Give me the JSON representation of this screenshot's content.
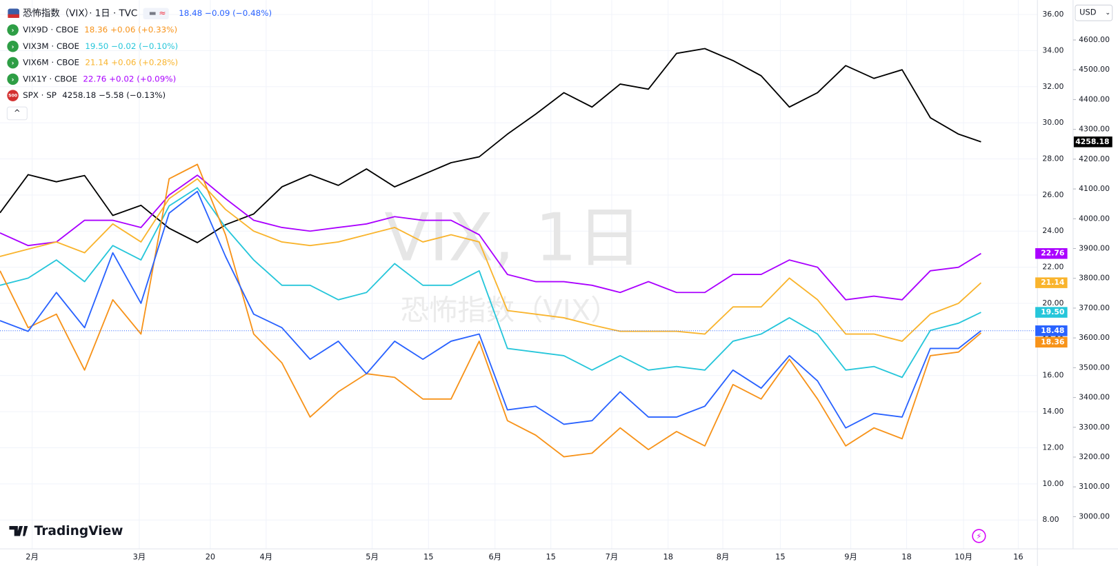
{
  "chart_data": {
    "type": "line",
    "watermark": [
      "VIX, 1日",
      "恐怖指数（VIX）"
    ],
    "brand": "TradingView",
    "currency": "USD",
    "grid": true,
    "x": [
      0,
      5,
      10,
      15,
      20,
      25,
      30,
      35,
      40,
      45,
      50,
      55,
      60,
      65,
      70,
      75,
      80,
      85,
      90,
      95,
      100,
      105,
      110,
      115,
      120,
      125,
      130,
      135,
      140,
      145,
      150,
      155,
      160,
      165,
      170,
      174
    ],
    "xlim": [
      0,
      184
    ],
    "xticks": [
      {
        "value": 5.7,
        "label": "2月"
      },
      {
        "value": 24.7,
        "label": "3月"
      },
      {
        "value": 37.3,
        "label": "20"
      },
      {
        "value": 47.2,
        "label": "4月"
      },
      {
        "value": 66,
        "label": "5月"
      },
      {
        "value": 76,
        "label": "15"
      },
      {
        "value": 87.8,
        "label": "6月"
      },
      {
        "value": 97.7,
        "label": "15"
      },
      {
        "value": 108.5,
        "label": "7月"
      },
      {
        "value": 118.5,
        "label": "18"
      },
      {
        "value": 128.2,
        "label": "8月"
      },
      {
        "value": 138.4,
        "label": "15"
      },
      {
        "value": 150.9,
        "label": "9月"
      },
      {
        "value": 160.8,
        "label": "18"
      },
      {
        "value": 170.9,
        "label": "10月"
      },
      {
        "value": 180.6,
        "label": "16"
      }
    ],
    "ylim": [
      6.4,
      36.8
    ],
    "yticks": [
      {
        "value": 8,
        "label": "8.00"
      },
      {
        "value": 10,
        "label": "10.00"
      },
      {
        "value": 12,
        "label": "12.00"
      },
      {
        "value": 14,
        "label": "14.00"
      },
      {
        "value": 16,
        "label": "16.00"
      },
      {
        "value": 18,
        "label": "18.00"
      },
      {
        "value": 20,
        "label": "20.00"
      },
      {
        "value": 22,
        "label": "22.00"
      },
      {
        "value": 24,
        "label": "24.00"
      },
      {
        "value": 26,
        "label": "26.00"
      },
      {
        "value": 28,
        "label": "28.00"
      },
      {
        "value": 30,
        "label": "30.00"
      },
      {
        "value": 32,
        "label": "32.00"
      },
      {
        "value": 34,
        "label": "34.00"
      },
      {
        "value": 36,
        "label": "36.00"
      }
    ],
    "y2lim": [
      2892,
      4734
    ],
    "y2ticks": [
      {
        "value": 3000,
        "label": "3000.00"
      },
      {
        "value": 3100,
        "label": "3100.00"
      },
      {
        "value": 3200,
        "label": "3200.00"
      },
      {
        "value": 3300,
        "label": "3300.00"
      },
      {
        "value": 3400,
        "label": "3400.00"
      },
      {
        "value": 3500,
        "label": "3500.00"
      },
      {
        "value": 3600,
        "label": "3600.00"
      },
      {
        "value": 3700,
        "label": "3700.00"
      },
      {
        "value": 3800,
        "label": "3800.00"
      },
      {
        "value": 3900,
        "label": "3900.00"
      },
      {
        "value": 4000,
        "label": "4000.00"
      },
      {
        "value": 4100,
        "label": "4100.00"
      },
      {
        "value": 4200,
        "label": "4200.00"
      },
      {
        "value": 4300,
        "label": "4300.00"
      },
      {
        "value": 4400,
        "label": "4400.00"
      },
      {
        "value": 4500,
        "label": "4500.00"
      },
      {
        "value": 4600,
        "label": "4600.00"
      }
    ],
    "series": [
      {
        "name": "恐怖指数（VIX）· 1日 · TVC",
        "quote": "18.48 −0.09 (−0.48%)",
        "last_label": "18.48",
        "color": "#2962ff",
        "values": [
          19.04,
          18.45,
          20.6,
          18.65,
          22.8,
          20.0,
          25.0,
          26.2,
          22.6,
          19.4,
          18.65,
          16.9,
          17.9,
          16.1,
          17.9,
          16.9,
          17.9,
          18.3,
          14.1,
          14.3,
          13.3,
          13.5,
          15.1,
          13.7,
          13.7,
          14.3,
          16.3,
          15.3,
          17.1,
          15.7,
          13.1,
          13.9,
          13.7,
          17.5,
          17.5,
          18.48
        ]
      },
      {
        "name": "VIX9D · CBOE",
        "quote": "18.36 +0.06 (+0.33%)",
        "last_label": "18.36",
        "color": "#f7931a",
        "values": [
          21.8,
          18.65,
          19.4,
          16.3,
          20.2,
          18.3,
          26.9,
          27.7,
          23.8,
          18.3,
          16.7,
          13.7,
          15.1,
          16.1,
          15.9,
          14.7,
          14.7,
          17.9,
          13.5,
          12.7,
          11.5,
          11.7,
          13.1,
          11.9,
          12.9,
          12.1,
          15.5,
          14.7,
          16.9,
          14.7,
          12.1,
          13.1,
          12.5,
          17.1,
          17.3,
          18.36
        ]
      },
      {
        "name": "VIX3M · CBOE",
        "quote": "19.50 −0.02 (−0.10%)",
        "last_label": "19.50",
        "color": "#26c6da",
        "values": [
          21.0,
          21.4,
          22.4,
          21.2,
          23.2,
          22.4,
          25.4,
          26.4,
          24.2,
          22.4,
          21.0,
          21.0,
          20.2,
          20.6,
          22.2,
          21.0,
          21.0,
          21.8,
          17.5,
          17.3,
          17.1,
          16.3,
          17.1,
          16.3,
          16.5,
          16.3,
          17.9,
          18.3,
          19.2,
          18.3,
          16.3,
          16.5,
          15.9,
          18.5,
          18.9,
          19.5
        ]
      },
      {
        "name": "VIX6M · CBOE",
        "quote": "21.14 +0.06 (+0.28%)",
        "last_label": "21.14",
        "color": "#f9b42d",
        "values": [
          22.6,
          23.0,
          23.4,
          22.8,
          24.4,
          23.4,
          25.8,
          26.9,
          25.2,
          24.0,
          23.4,
          23.2,
          23.4,
          23.8,
          24.2,
          23.4,
          23.8,
          23.4,
          19.6,
          19.4,
          19.2,
          18.8,
          18.45,
          18.45,
          18.45,
          18.3,
          19.8,
          19.8,
          21.4,
          20.2,
          18.3,
          18.3,
          17.9,
          19.4,
          20.0,
          21.14
        ]
      },
      {
        "name": "VIX1Y · CBOE",
        "quote": "22.76 +0.02 (+0.09%)",
        "last_label": "22.76",
        "color": "#aa00ff",
        "values": [
          23.9,
          23.2,
          23.4,
          24.6,
          24.6,
          24.2,
          26.0,
          27.1,
          25.8,
          24.6,
          24.2,
          24.0,
          24.2,
          24.4,
          24.8,
          24.6,
          24.6,
          23.8,
          21.6,
          21.2,
          21.2,
          21.0,
          20.6,
          21.2,
          20.6,
          20.6,
          21.6,
          21.6,
          22.4,
          22.0,
          20.2,
          20.4,
          20.2,
          21.8,
          22.0,
          22.76
        ]
      },
      {
        "name": "SPX · SP",
        "quote": "4258.18 −5.58 (−0.13%)",
        "last_label": "4258.18",
        "icon_label": "500",
        "color": "#000000",
        "axis": "y2",
        "values": [
          4020,
          4148,
          4124,
          4145,
          4011,
          4045,
          3968,
          3920,
          3980,
          4016,
          4107,
          4148,
          4112,
          4167,
          4107,
          4148,
          4188,
          4208,
          4284,
          4351,
          4423,
          4375,
          4452,
          4435,
          4555,
          4571,
          4531,
          4480,
          4375,
          4423,
          4514,
          4471,
          4500,
          4339,
          4284,
          4258
        ]
      }
    ]
  }
}
